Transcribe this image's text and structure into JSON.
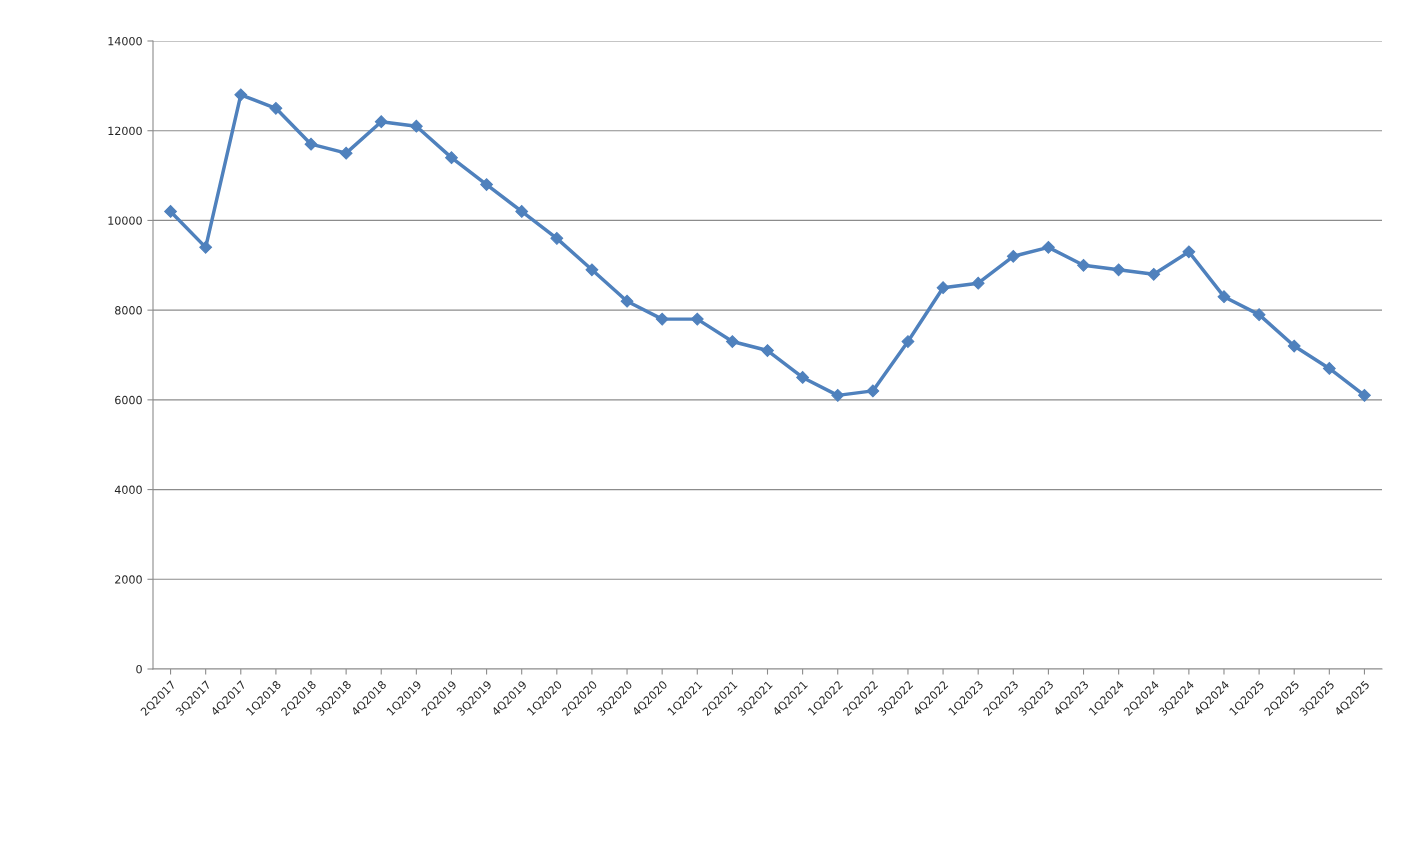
{
  "chart_data": {
    "type": "line",
    "categories": [
      "2Q2017",
      "3Q2017",
      "4Q2017",
      "1Q2018",
      "2Q2018",
      "3Q2018",
      "4Q2018",
      "1Q2019",
      "2Q2019",
      "3Q2019",
      "4Q2019",
      "1Q2020",
      "2Q2020",
      "3Q2020",
      "4Q2020",
      "1Q2021",
      "2Q2021",
      "3Q2021",
      "4Q2021",
      "1Q2022",
      "2Q2022",
      "3Q2022",
      "4Q2022",
      "1Q2023",
      "2Q2023",
      "3Q2023",
      "4Q2023",
      "1Q2024",
      "2Q2024",
      "3Q2024",
      "4Q2024",
      "1Q2025",
      "2Q2025",
      "3Q2025",
      "4Q2025"
    ],
    "series": [
      {
        "color": "#4f81bd",
        "values": [
          10200,
          9400,
          12800,
          12500,
          11700,
          11500,
          12200,
          12100,
          11400,
          10800,
          10200,
          9600,
          8900,
          8200,
          7800,
          7800,
          7300,
          7100,
          6500,
          6100,
          6200,
          7300,
          8500,
          8600,
          9200,
          9400,
          9000,
          8900,
          8800,
          9300,
          8300,
          7900,
          7200,
          6700,
          6100
        ]
      }
    ],
    "ylim": [
      0,
      14000
    ],
    "yticks": [
      0,
      2000,
      4000,
      6000,
      8000,
      10000,
      12000,
      14000
    ],
    "grid": "y",
    "marker": "diamond",
    "line_style": "solid"
  }
}
